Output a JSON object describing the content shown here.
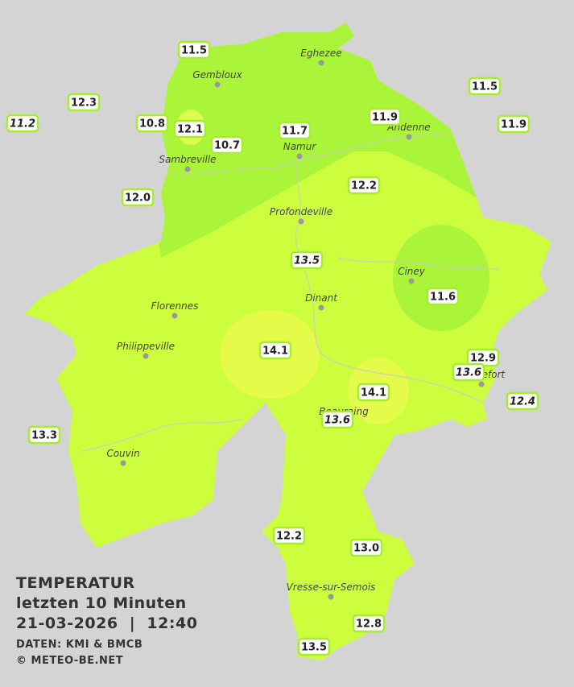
{
  "title": {
    "heading": "TEMPERATUR",
    "period": "letzten 10 Minuten",
    "timestamp": "21-03-2026  |  12:40",
    "source": "DATEN: KMI & BMCB",
    "copyright": "© METEO-BE.NET"
  },
  "stations": [
    {
      "value": "11.5",
      "italic": false
    },
    {
      "value": "12.3",
      "italic": false
    },
    {
      "value": "11.2",
      "italic": true
    },
    {
      "value": "10.8",
      "italic": false
    },
    {
      "value": "12.1",
      "italic": false
    },
    {
      "value": "10.7",
      "italic": false
    },
    {
      "value": "11.7",
      "italic": false
    },
    {
      "value": "11.9",
      "italic": false
    },
    {
      "value": "11.5",
      "italic": false
    },
    {
      "value": "11.9",
      "italic": false
    },
    {
      "value": "12.0",
      "italic": false
    },
    {
      "value": "12.2",
      "italic": false
    },
    {
      "value": "13.5",
      "italic": true
    },
    {
      "value": "11.6",
      "italic": false
    },
    {
      "value": "14.1",
      "italic": false
    },
    {
      "value": "12.9",
      "italic": false
    },
    {
      "value": "13.6",
      "italic": true
    },
    {
      "value": "14.1",
      "italic": false
    },
    {
      "value": "12.4",
      "italic": true
    },
    {
      "value": "13.6",
      "italic": true
    },
    {
      "value": "13.3",
      "italic": false
    },
    {
      "value": "12.2",
      "italic": false
    },
    {
      "value": "13.0",
      "italic": false
    },
    {
      "value": "12.8",
      "italic": false
    },
    {
      "value": "13.5",
      "italic": false
    }
  ],
  "cities": [
    "Eghezee",
    "Gembloux",
    "Andenne",
    "Namur",
    "Sambreville",
    "Profondeville",
    "Ciney",
    "Dinant",
    "Florennes",
    "Philippeville",
    "Rochefort",
    "Beauraing",
    "Couvin",
    "Vresse-sur-Semois"
  ]
}
